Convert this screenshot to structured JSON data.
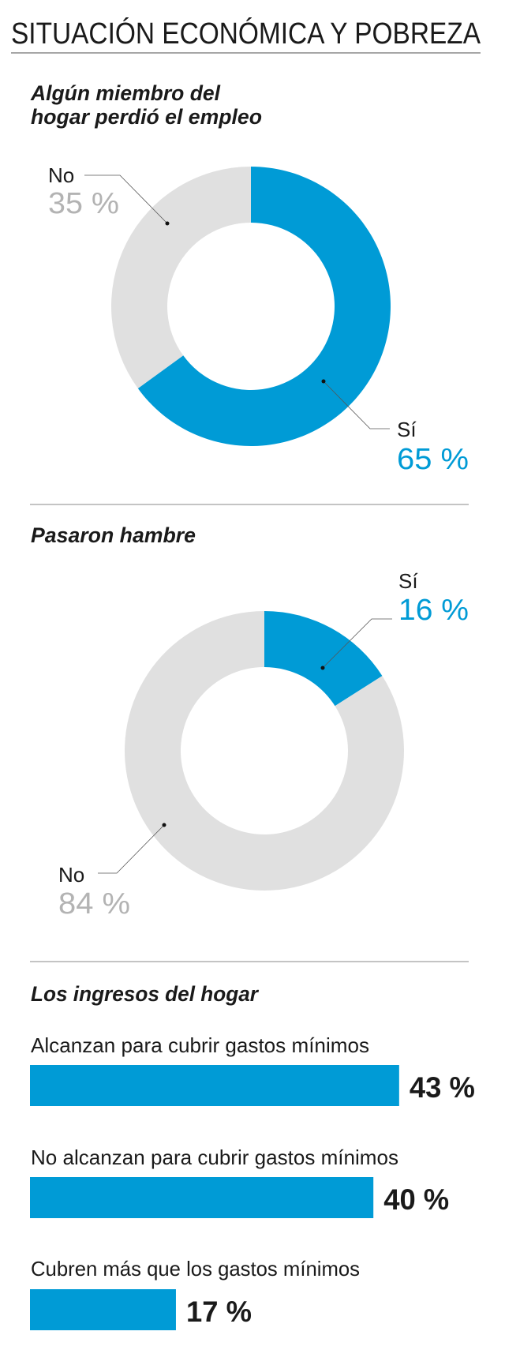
{
  "title": "SITUACIÓN ECONÓMICA Y POBREZA",
  "colors": {
    "accent": "#009bd6",
    "neutral": "#e0e0e0",
    "neutral_text": "#b3b3b3",
    "text": "#1a1a1a"
  },
  "chart_data": [
    {
      "type": "pie",
      "donut": true,
      "title_lines": [
        "Algún miembro del",
        "hogar perdió el empleo"
      ],
      "slices": [
        {
          "label": "Sí",
          "value": 65,
          "value_label": "65 %",
          "color": "#009bd6"
        },
        {
          "label": "No",
          "value": 35,
          "value_label": "35 %",
          "color": "#e0e0e0"
        }
      ]
    },
    {
      "type": "pie",
      "donut": true,
      "title_lines": [
        "Pasaron hambre"
      ],
      "slices": [
        {
          "label": "Sí",
          "value": 16,
          "value_label": "16 %",
          "color": "#009bd6"
        },
        {
          "label": "No",
          "value": 84,
          "value_label": "84 %",
          "color": "#e0e0e0"
        }
      ]
    },
    {
      "type": "bar",
      "orientation": "horizontal",
      "title": "Los ingresos del hogar",
      "categories": [
        "Alcanzan para cubrir gastos mínimos",
        "No alcanzan para cubrir gastos mínimos",
        "Cubren más que los gastos mínimos"
      ],
      "values": [
        43,
        40,
        17
      ],
      "value_labels": [
        "43 %",
        "40 %",
        "17 %"
      ],
      "unit": "%"
    }
  ]
}
